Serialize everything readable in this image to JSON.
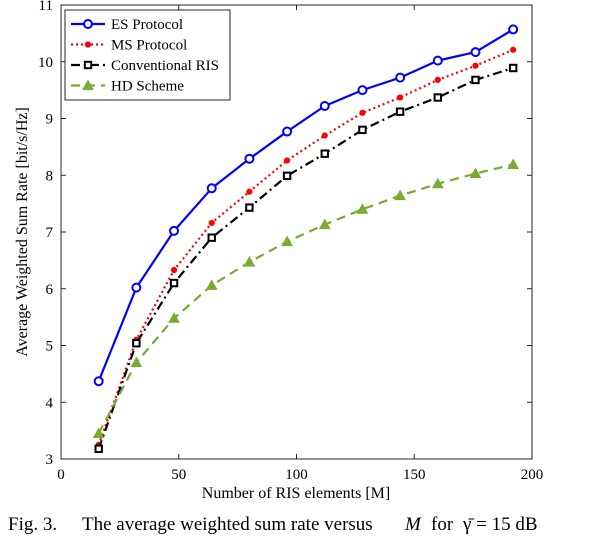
{
  "chart_data": {
    "type": "line",
    "xlabel": "Number of RIS elements [M]",
    "ylabel": "Average Weighted Sum Rate [bit/s/Hz]",
    "xlim": [
      0,
      200
    ],
    "ylim": [
      3,
      11
    ],
    "xticks": [
      "0",
      "50",
      "100",
      "150",
      "200"
    ],
    "yticks": [
      "3",
      "4",
      "5",
      "6",
      "7",
      "8",
      "9",
      "10",
      "11"
    ],
    "grid": false,
    "legend_position": "top-left",
    "x": [
      16,
      32,
      48,
      64,
      80,
      96,
      112,
      128,
      144,
      160,
      176,
      192
    ],
    "series": [
      {
        "name": "ES Protocol",
        "color": "#0000ff",
        "line": "solid",
        "marker": "circle",
        "values": [
          4.37,
          6.02,
          7.02,
          7.77,
          8.29,
          8.77,
          9.22,
          9.5,
          9.72,
          10.02,
          10.17,
          10.57
        ]
      },
      {
        "name": "MS Protocol",
        "color": "#ff0000",
        "line": "dotted",
        "marker": "dot",
        "values": [
          3.25,
          5.1,
          6.33,
          7.16,
          7.71,
          8.26,
          8.7,
          9.1,
          9.37,
          9.68,
          9.93,
          10.21
        ]
      },
      {
        "name": "Conventional RIS",
        "color": "#000000",
        "line": "dashdot",
        "marker": "square",
        "values": [
          3.18,
          5.04,
          6.1,
          6.9,
          7.43,
          7.99,
          8.38,
          8.8,
          9.12,
          9.37,
          9.68,
          9.89
        ]
      },
      {
        "name": "HD Scheme",
        "color": "#77ac30",
        "line": "dashed",
        "marker": "triangle",
        "values": [
          3.45,
          4.7,
          5.48,
          6.06,
          6.47,
          6.83,
          7.13,
          7.4,
          7.64,
          7.85,
          8.03,
          8.19
        ]
      }
    ]
  },
  "caption": {
    "label": "Fig. 3.",
    "text": "The average weighted sum rate versus",
    "var_m": "M",
    "text_for": "for",
    "gamma_expr": "γ̄ = 15 dB"
  }
}
